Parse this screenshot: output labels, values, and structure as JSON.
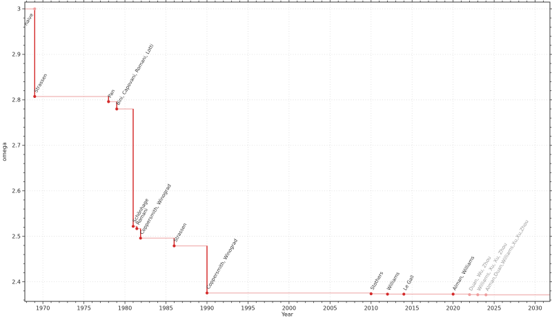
{
  "chart_data": {
    "type": "line",
    "subtype": "step-post",
    "title": "",
    "xlabel": "Year",
    "ylabel": "omega",
    "xlim": [
      1967.8,
      2031.8
    ],
    "ylim": [
      2.357,
      3.015
    ],
    "x_ticks": [
      {
        "v": 1970,
        "label": "1970"
      },
      {
        "v": 1975,
        "label": "1975"
      },
      {
        "v": 1980,
        "label": "1980"
      },
      {
        "v": 1985,
        "label": "1985"
      },
      {
        "v": 1990,
        "label": "1990"
      },
      {
        "v": 1995,
        "label": "1995"
      },
      {
        "v": 2000,
        "label": "2000"
      },
      {
        "v": 2005,
        "label": "2005"
      },
      {
        "v": 2010,
        "label": "2010"
      },
      {
        "v": 2015,
        "label": "2015"
      },
      {
        "v": 2020,
        "label": "2020"
      },
      {
        "v": 2025,
        "label": "2025"
      },
      {
        "v": 2030,
        "label": "2030"
      }
    ],
    "x_minor_step": 1,
    "y_ticks": [
      {
        "v": 2.4,
        "label": "2.4"
      },
      {
        "v": 2.5,
        "label": "2.5"
      },
      {
        "v": 2.6,
        "label": "2.6"
      },
      {
        "v": 2.7,
        "label": "2.7"
      },
      {
        "v": 2.8,
        "label": "2.8"
      },
      {
        "v": 2.9,
        "label": "2.9"
      },
      {
        "v": 3.0,
        "label": "3"
      }
    ],
    "y_minor_step": 0.02,
    "grid": {
      "show": true,
      "style": "dotted",
      "color": "#dadada"
    },
    "legend": {
      "show": false
    },
    "colors": {
      "step_line": "rgba(214,43,43,0.32)",
      "drop_line": "#d42a2a",
      "marker": "#d42a2a",
      "marker_light": "#ef9d9d",
      "label": "#333333",
      "label_faded": "#999999",
      "axis": "#333333"
    },
    "label_rotation_deg": -60,
    "points": [
      {
        "year": 1969,
        "x": 1969,
        "omega": 3,
        "label": "naive",
        "faded": false,
        "marker": "light",
        "label_anchor": "end"
      },
      {
        "year": 1969,
        "x": 1969,
        "omega": 2.8074,
        "label": "Strassen",
        "faded": false
      },
      {
        "year": 1978,
        "x": 1978,
        "omega": 2.796,
        "label": "Pan",
        "faded": false
      },
      {
        "year": 1979,
        "x": 1979,
        "omega": 2.78,
        "label": "Bini, Capovani, Romani, Lotti",
        "faded": false
      },
      {
        "year": 1981,
        "x": 1981,
        "omega": 2.522,
        "label": "Schönhage",
        "faded": false
      },
      {
        "year": 1981,
        "x": 1981.45,
        "omega": 2.517,
        "label": "Romani",
        "faded": false
      },
      {
        "year": 1981,
        "x": 1981.9,
        "omega": 2.496,
        "label": "Coppersmith, Winograd",
        "faded": false
      },
      {
        "year": 1986,
        "x": 1986,
        "omega": 2.479,
        "label": "Strassen",
        "faded": false
      },
      {
        "year": 1990,
        "x": 1990,
        "omega": 2.3755,
        "label": "Coppersmith, Winograd",
        "faded": false
      },
      {
        "year": 2010,
        "x": 2010,
        "omega": 2.3737,
        "label": "Stothers",
        "faded": false
      },
      {
        "year": 2012,
        "x": 2012,
        "omega": 2.3729,
        "label": "Williams",
        "faded": false
      },
      {
        "year": 2014,
        "x": 2014,
        "omega": 2.3728639,
        "label": "Le Gall",
        "faded": false
      },
      {
        "year": 2020,
        "x": 2020,
        "omega": 2.3728596,
        "label": "Alman, Williams",
        "faded": false
      },
      {
        "year": 2022,
        "x": 2022,
        "omega": 2.371866,
        "label": "Duan, Wu, Zhou",
        "faded": true
      },
      {
        "year": 2023,
        "x": 2023,
        "omega": 2.371552,
        "label": "Williams, Xu, Xu, Zhou",
        "faded": true
      },
      {
        "year": 2024,
        "x": 2024,
        "omega": 2.371339,
        "label": "Alman,Duan,Williams,Xu,Xu,Zhou",
        "faded": true
      }
    ]
  }
}
